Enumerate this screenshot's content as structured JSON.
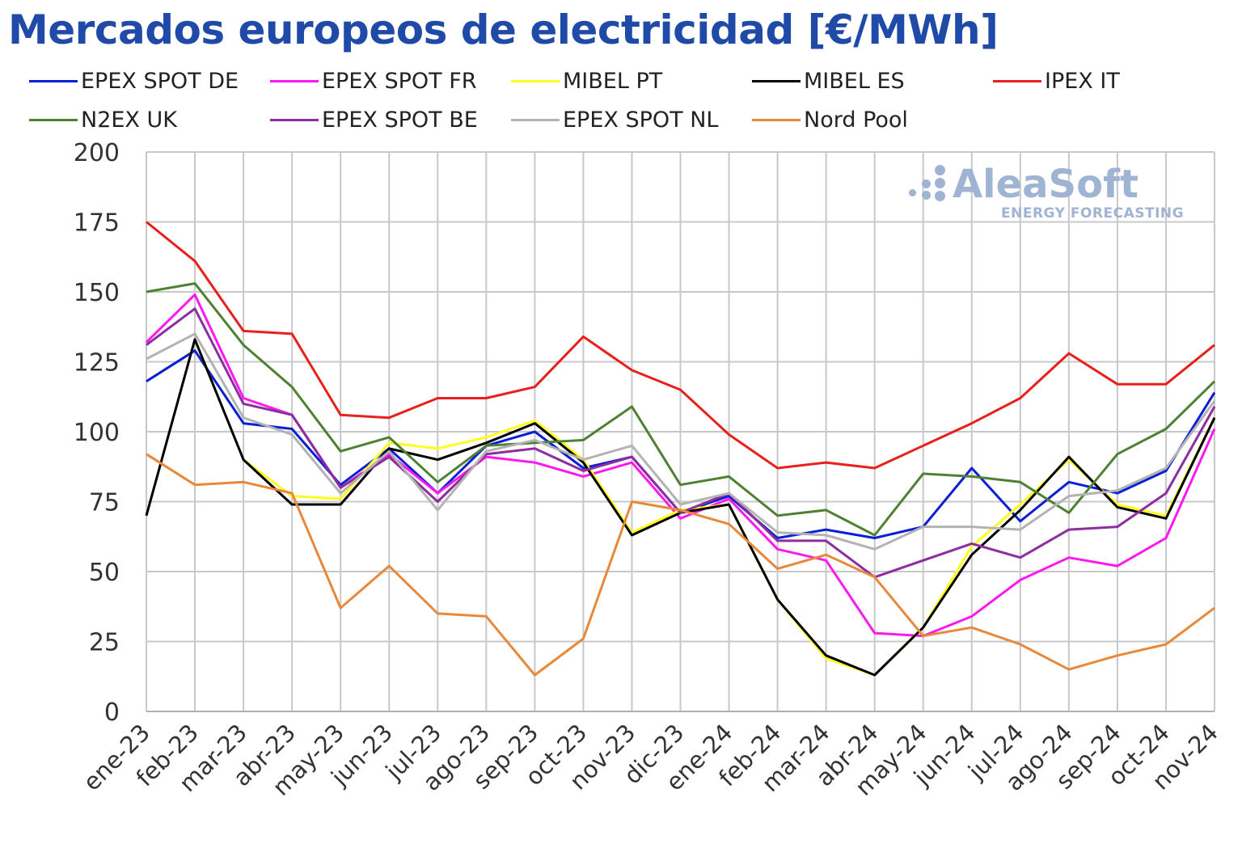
{
  "title": "Mercados europeos de electricidad [€/MWh]",
  "logo": {
    "name": "AleaSoft",
    "subtitle": "ENERGY FORECASTING"
  },
  "chart_data": {
    "type": "line",
    "title": "Mercados europeos de electricidad [€/MWh]",
    "xlabel": "",
    "ylabel": "",
    "ylim": [
      0,
      200
    ],
    "yticks": [
      0,
      25,
      50,
      75,
      100,
      125,
      150,
      175,
      200
    ],
    "grid": true,
    "legend_position": "top",
    "categories": [
      "ene-23",
      "feb-23",
      "mar-23",
      "abr-23",
      "may-23",
      "jun-23",
      "jul-23",
      "ago-23",
      "sep-23",
      "oct-23",
      "nov-23",
      "dic-23",
      "ene-24",
      "feb-24",
      "mar-24",
      "abr-24",
      "may-24",
      "jun-24",
      "jul-24",
      "ago-24",
      "sep-24",
      "oct-24",
      "nov-24"
    ],
    "series": [
      {
        "name": "EPEX SPOT DE",
        "color": "#0a1fd6",
        "values": [
          118,
          129,
          103,
          101,
          81,
          94,
          78,
          95,
          100,
          87,
          91,
          71,
          77,
          62,
          65,
          62,
          66,
          87,
          68,
          82,
          78,
          86,
          114
        ]
      },
      {
        "name": "EPEX SPOT FR",
        "color": "#ff19f0",
        "values": [
          132,
          149,
          112,
          106,
          80,
          92,
          78,
          91,
          89,
          84,
          89,
          69,
          76,
          58,
          54,
          28,
          27,
          34,
          47,
          55,
          52,
          62,
          101
        ]
      },
      {
        "name": "MIBEL PT",
        "color": "#ffff1f",
        "values": [
          70,
          133,
          90,
          77,
          76,
          96,
          94,
          98,
          104,
          90,
          64,
          72,
          74,
          40,
          19,
          13,
          30,
          59,
          74,
          90,
          74,
          70,
          105
        ]
      },
      {
        "name": "MIBEL ES",
        "color": "#000000",
        "values": [
          70,
          133,
          90,
          74,
          74,
          94,
          90,
          96,
          103,
          89,
          63,
          71,
          74,
          40,
          20,
          13,
          30,
          56,
          72,
          91,
          73,
          69,
          105
        ]
      },
      {
        "name": "IPEX IT",
        "color": "#e8201c",
        "values": [
          175,
          161,
          136,
          135,
          106,
          105,
          112,
          112,
          116,
          134,
          122,
          115,
          99,
          87,
          89,
          87,
          95,
          103,
          112,
          128,
          117,
          117,
          131
        ]
      },
      {
        "name": "N2EX UK",
        "color": "#4f8133",
        "values": [
          150,
          153,
          131,
          116,
          93,
          98,
          82,
          95,
          96,
          97,
          109,
          81,
          84,
          70,
          72,
          63,
          85,
          84,
          82,
          71,
          92,
          101,
          118
        ]
      },
      {
        "name": "EPEX SPOT BE",
        "color": "#8d2da0",
        "values": [
          131,
          144,
          110,
          106,
          80,
          91,
          75,
          92,
          94,
          86,
          91,
          71,
          78,
          61,
          61,
          48,
          54,
          60,
          55,
          65,
          66,
          78,
          109
        ]
      },
      {
        "name": "EPEX SPOT NL",
        "color": "#b3b3b3",
        "values": [
          126,
          135,
          105,
          99,
          78,
          93,
          72,
          93,
          97,
          90,
          95,
          74,
          78,
          64,
          63,
          58,
          66,
          66,
          65,
          77,
          79,
          87,
          111
        ]
      },
      {
        "name": "Nord Pool",
        "color": "#e8883a",
        "values": [
          92,
          81,
          82,
          78,
          37,
          52,
          35,
          34,
          13,
          26,
          75,
          72,
          67,
          51,
          56,
          48,
          27,
          30,
          24,
          15,
          20,
          24,
          37
        ]
      }
    ]
  }
}
